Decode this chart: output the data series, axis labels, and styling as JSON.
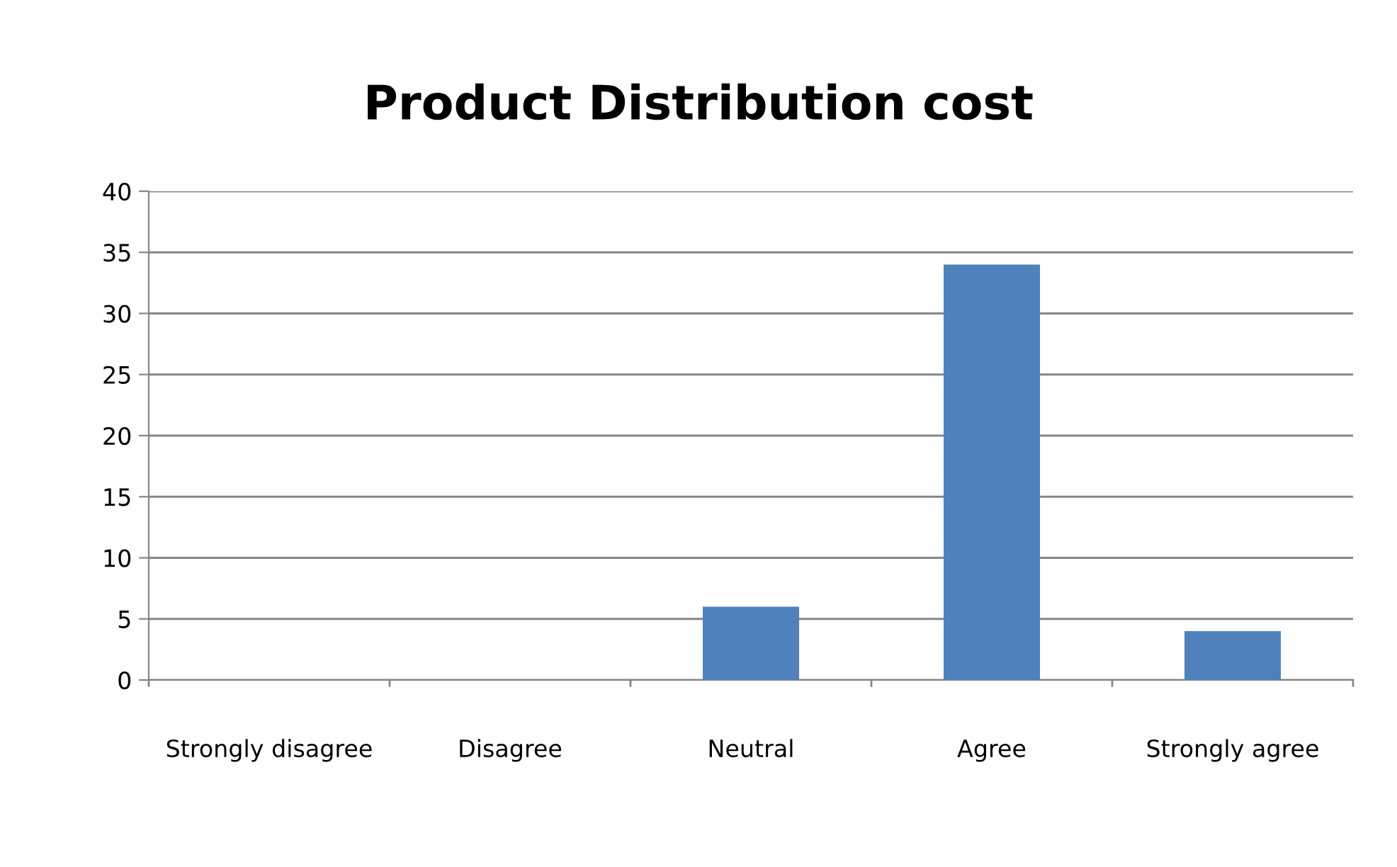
{
  "chart_data": {
    "type": "bar",
    "title": "Product Distribution cost",
    "categories": [
      "Strongly disagree",
      "Disagree",
      "Neutral",
      "Agree",
      "Strongly agree"
    ],
    "values": [
      0,
      0,
      6,
      34,
      4
    ],
    "color": "#4f81bd",
    "ylim": [
      0,
      40
    ],
    "yticks": [
      0,
      5,
      10,
      15,
      20,
      25,
      30,
      35,
      40
    ],
    "grid": "y",
    "legend": false
  }
}
